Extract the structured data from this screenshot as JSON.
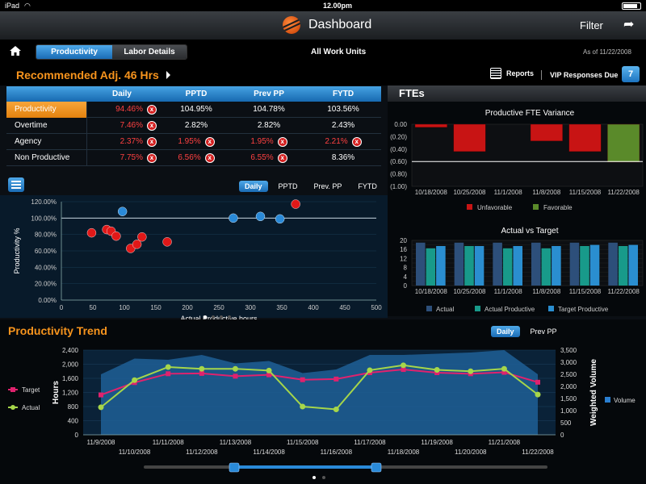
{
  "status": {
    "carrier": "iPad",
    "time": "12.00pm"
  },
  "nav": {
    "title": "Dashboard",
    "filter": "Filter"
  },
  "tabs": {
    "productivity": "Productivity",
    "labor": "Labor Details"
  },
  "units": "All Work Units",
  "asof": "As of 11/22/2008",
  "recommended": {
    "label": "Recommended Adj.",
    "value": "46 Hrs"
  },
  "reports": "Reports",
  "vip": {
    "label": "VIP Responses Due",
    "count": "7"
  },
  "kpi": {
    "headers": [
      "",
      "Daily",
      "PPTD",
      "Prev PP",
      "FYTD"
    ],
    "rows": [
      {
        "name": "Productivity",
        "cells": [
          {
            "v": "94.46%",
            "bad": true
          },
          {
            "v": "104.95%",
            "bad": false
          },
          {
            "v": "104.78%",
            "bad": false
          },
          {
            "v": "103.56%",
            "bad": false
          }
        ]
      },
      {
        "name": "Overtime",
        "cells": [
          {
            "v": "7.46%",
            "bad": true
          },
          {
            "v": "2.82%",
            "bad": false
          },
          {
            "v": "2.82%",
            "bad": false
          },
          {
            "v": "2.43%",
            "bad": false
          }
        ]
      },
      {
        "name": "Agency",
        "cells": [
          {
            "v": "2.37%",
            "bad": true
          },
          {
            "v": "1.95%",
            "bad": true
          },
          {
            "v": "1.95%",
            "bad": true
          },
          {
            "v": "2.21%",
            "bad": true
          }
        ]
      },
      {
        "name": "Non Productive",
        "cells": [
          {
            "v": "7.75%",
            "bad": true
          },
          {
            "v": "6.56%",
            "bad": true
          },
          {
            "v": "6.55%",
            "bad": true
          },
          {
            "v": "8.36%",
            "bad": false
          }
        ]
      }
    ]
  },
  "scatter_tabs": [
    "Daily",
    "PPTD",
    "Prev. PP",
    "FYTD"
  ],
  "ftes_title": "FTEs",
  "trend_title": "Productivity Trend",
  "trend_tabs": [
    "Daily",
    "Prev PP"
  ],
  "chart_data": [
    {
      "id": "scatter",
      "type": "scatter",
      "xlabel": "Actual Productive hours",
      "ylabel": "Productivity %",
      "xlim": [
        0,
        500
      ],
      "ylim": [
        0,
        120
      ],
      "xticks": [
        0,
        50,
        100,
        150,
        200,
        250,
        300,
        350,
        400,
        450,
        500
      ],
      "yticks": [
        "0.00%",
        "20.00%",
        "40.00%",
        "60.00%",
        "80.00%",
        "100.00%",
        "120.00%"
      ],
      "reference_line": 100,
      "series": [
        {
          "color": "#e01818",
          "points": [
            [
              48,
              82
            ],
            [
              72,
              86
            ],
            [
              79,
              84
            ],
            [
              87,
              78
            ],
            [
              110,
              63
            ],
            [
              120,
              68
            ],
            [
              128,
              77
            ],
            [
              168,
              71
            ],
            [
              372,
              117
            ]
          ]
        },
        {
          "color": "#2a8ad8",
          "points": [
            [
              97,
              108
            ],
            [
              273,
              100
            ],
            [
              316,
              102
            ],
            [
              347,
              99
            ]
          ]
        }
      ]
    },
    {
      "id": "fte_variance",
      "type": "bar",
      "title": "Productive FTE Variance",
      "categories": [
        "10/18/2008",
        "10/25/2008",
        "11/1/2008",
        "11/8/2008",
        "11/15/2008",
        "11/22/2008"
      ],
      "values": [
        -0.05,
        -0.44,
        0,
        -0.27,
        -0.44,
        -0.61
      ],
      "colors": [
        "#c81414",
        "#c81414",
        "#c81414",
        "#c81414",
        "#c81414",
        "#5a8a2a"
      ],
      "ylim": [
        -1.0,
        0.0
      ],
      "yticks": [
        "0.00",
        "(0.20)",
        "(0.40)",
        "(0.60)",
        "(0.80)",
        "(1.00)"
      ],
      "legend": [
        {
          "name": "Unfavorable",
          "color": "#c81414"
        },
        {
          "name": "Favorable",
          "color": "#5a8a2a"
        }
      ]
    },
    {
      "id": "actual_vs_target",
      "type": "bar",
      "title": "Actual vs Target",
      "categories": [
        "10/18/2008",
        "10/25/2008",
        "11/1/2008",
        "11/8/2008",
        "11/15/2008",
        "11/22/2008"
      ],
      "series": [
        {
          "name": "Actual",
          "color": "#2d4f7a",
          "values": [
            19,
            19,
            19,
            19,
            19,
            19
          ]
        },
        {
          "name": "Actual Productive",
          "color": "#189a8a",
          "values": [
            16.5,
            17.5,
            16.5,
            16.5,
            17.5,
            17.5
          ]
        },
        {
          "name": "Target Productive",
          "color": "#2a8ed0",
          "values": [
            17.5,
            17.5,
            17.5,
            17.5,
            18,
            18
          ]
        }
      ],
      "ylim": [
        0,
        20
      ],
      "yticks": [
        0,
        2,
        4,
        6,
        8,
        10,
        12,
        14,
        16,
        18,
        20
      ]
    },
    {
      "id": "trend",
      "type": "line",
      "ylabel": "Hours",
      "y2label": "Weighted Volume",
      "x": [
        "11/9/2008",
        "11/10/2008",
        "11/11/2008",
        "11/12/2008",
        "11/13/2008",
        "11/14/2008",
        "11/15/2008",
        "11/16/2008",
        "11/17/2008",
        "11/18/2008",
        "11/19/2008",
        "11/20/2008",
        "11/21/2008",
        "11/22/2008"
      ],
      "ylim": [
        0,
        2400
      ],
      "yticks": [
        0,
        400,
        800,
        1200,
        1600,
        2000,
        2400
      ],
      "y2lim": [
        0,
        3500
      ],
      "y2ticks": [
        "0",
        "500",
        "1,000",
        "1,500",
        "2,000",
        "2,500",
        "3,000",
        "3,500"
      ],
      "series": [
        {
          "name": "Target",
          "color": "#e0226e",
          "values": [
            1130,
            1480,
            1730,
            1740,
            1660,
            1700,
            1560,
            1580,
            1760,
            1850,
            1760,
            1730,
            1770,
            1490
          ]
        },
        {
          "name": "Actual",
          "color": "#a6d64a",
          "values": [
            780,
            1550,
            1920,
            1870,
            1870,
            1820,
            800,
            720,
            1830,
            1970,
            1840,
            1800,
            1870,
            1140
          ]
        },
        {
          "name": "Volume",
          "color": "#1f5f96",
          "values": [
            2500,
            3150,
            3100,
            3300,
            2950,
            3050,
            2550,
            2700,
            3300,
            3300,
            3350,
            3400,
            3500,
            2500
          ]
        }
      ]
    }
  ]
}
